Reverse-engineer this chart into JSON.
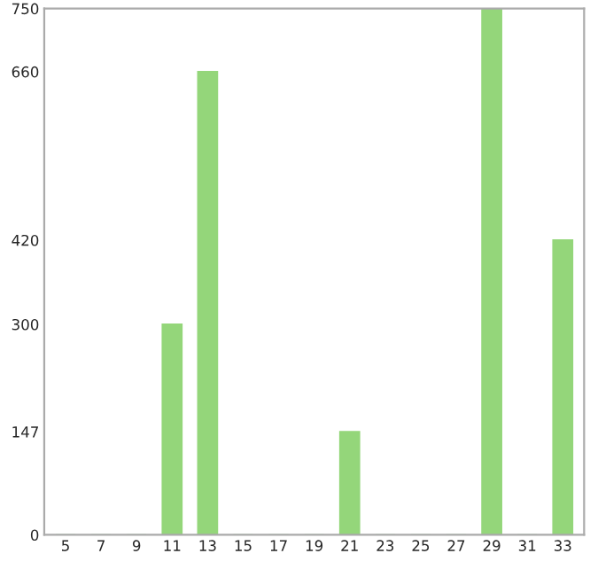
{
  "chart_data": {
    "type": "bar",
    "categories": [
      "5",
      "7",
      "9",
      "11",
      "13",
      "15",
      "17",
      "19",
      "21",
      "23",
      "25",
      "27",
      "29",
      "31",
      "33"
    ],
    "values": [
      0,
      0,
      0,
      300,
      660,
      0,
      0,
      0,
      147,
      0,
      0,
      0,
      750,
      0,
      420
    ],
    "color": "#94d67a",
    "ylim": [
      0,
      750
    ],
    "yticks": [
      0,
      147,
      300,
      420,
      660,
      750
    ],
    "grid": false
  }
}
